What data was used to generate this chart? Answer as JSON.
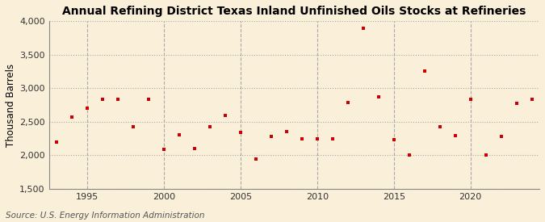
{
  "title": "Annual Refining District Texas Inland Unfinished Oils Stocks at Refineries",
  "ylabel": "Thousand Barrels",
  "source": "Source: U.S. Energy Information Administration",
  "background_color": "#faefd9",
  "plot_background_color": "#faefd9",
  "marker_color": "#cc0000",
  "marker": "s",
  "marker_size": 3.5,
  "ylim": [
    1500,
    4000
  ],
  "yticks": [
    1500,
    2000,
    2500,
    3000,
    3500,
    4000
  ],
  "ytick_labels": [
    "1,500",
    "2,000",
    "2,500",
    "3,000",
    "3,500",
    "4,000"
  ],
  "xlim": [
    1992.5,
    2024.5
  ],
  "xticks": [
    1995,
    2000,
    2005,
    2010,
    2015,
    2020
  ],
  "years": [
    1993,
    1994,
    1995,
    1996,
    1997,
    1998,
    1999,
    2000,
    2001,
    2002,
    2003,
    2004,
    2005,
    2006,
    2007,
    2008,
    2009,
    2010,
    2011,
    2012,
    2013,
    2014,
    2015,
    2016,
    2017,
    2018,
    2019,
    2020,
    2021,
    2022,
    2023,
    2024
  ],
  "values": [
    2200,
    2570,
    2700,
    2840,
    2830,
    2430,
    2840,
    2090,
    2310,
    2100,
    2430,
    2600,
    2340,
    1940,
    2280,
    2360,
    2250,
    2240,
    2250,
    2790,
    3890,
    2870,
    2230,
    2010,
    3260,
    2430,
    2290,
    2840,
    2000,
    2280,
    2780,
    2840
  ],
  "title_fontsize": 10,
  "tick_fontsize": 8,
  "ylabel_fontsize": 8.5,
  "source_fontsize": 7.5
}
